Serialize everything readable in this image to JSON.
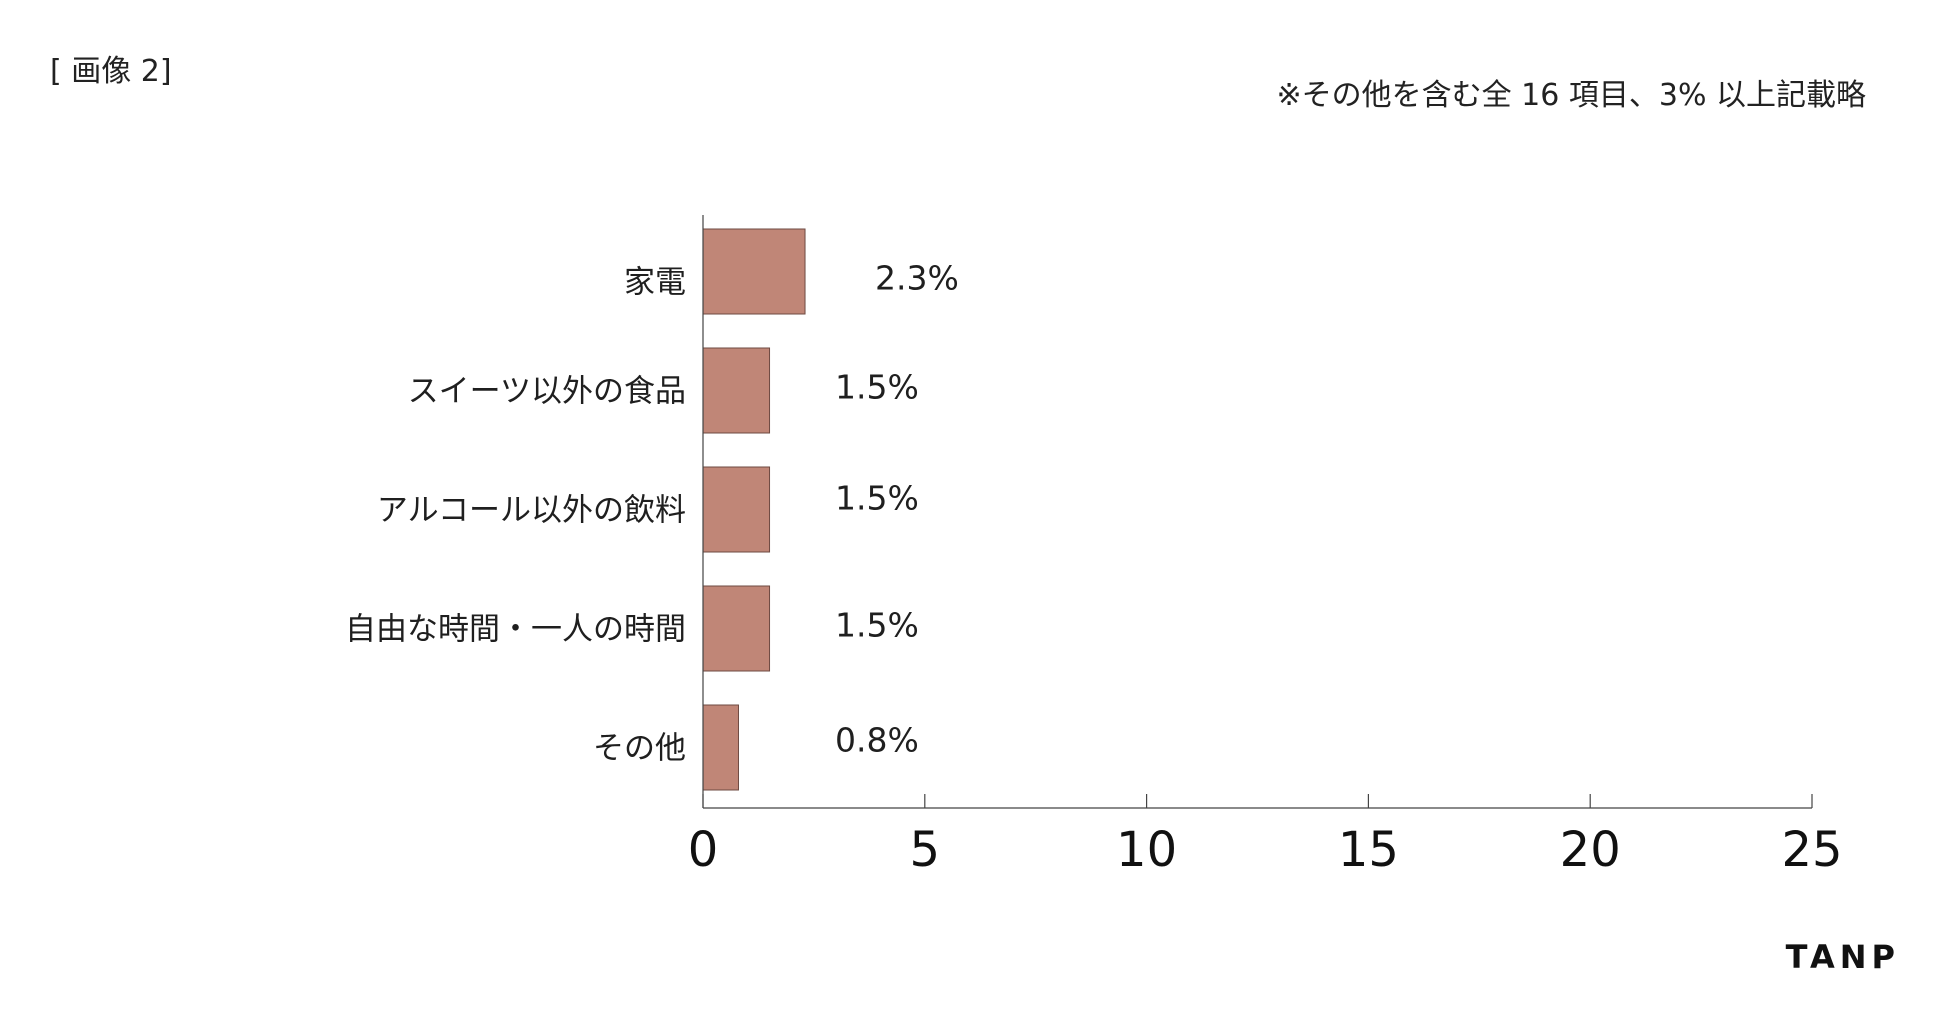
{
  "header": {
    "image_tag": "[ 画像 2]",
    "note": "※その他を含む全 16 項目、3% 以上記載略"
  },
  "brand": {
    "logo_text": "TANP"
  },
  "chart_data": {
    "type": "bar",
    "orientation": "horizontal",
    "title": "",
    "xlabel": "",
    "ylabel": "",
    "categories": [
      "家電",
      "スイーツ以外の食品",
      "アルコール以外の飲料",
      "自由な時間・一人の時間",
      "その他"
    ],
    "values": [
      2.3,
      1.5,
      1.5,
      1.5,
      0.8
    ],
    "value_labels": [
      "2.3%",
      "1.5%",
      "1.5%",
      "1.5%",
      "0.8%"
    ],
    "xlim": [
      0,
      25
    ],
    "xticks": [
      0,
      5,
      10,
      15,
      20,
      25
    ],
    "grid": false,
    "legend": "none",
    "bar_color": "#c08677"
  }
}
